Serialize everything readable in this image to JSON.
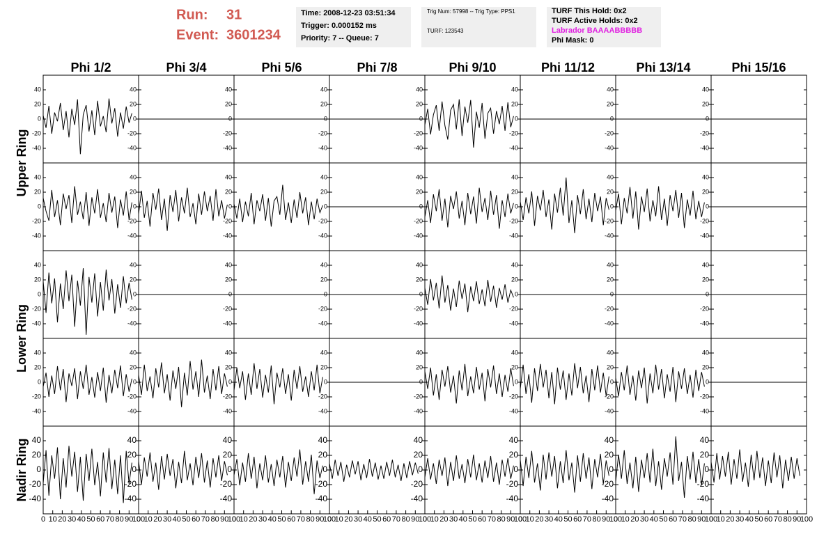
{
  "header": {
    "run_label": "Run:",
    "run": "31",
    "event_label": "Event:",
    "event": "3601234",
    "time_box": [
      "Time: 2008-12-23 03:51:34",
      "Trigger: 0.000152 ms",
      "Priority: 7 -- Queue: 7"
    ],
    "trig_box": [
      "Trig Num: 57998 -- Trig Type: PPS1",
      "TURF: 123543"
    ],
    "turf_box": [
      "TURF This Hold: 0x2",
      "TURF Active Holds: 0x2",
      "Labrador BAAAABBBBB",
      "Phi Mask: 0"
    ]
  },
  "columns": [
    "Phi 1/2",
    "Phi 3/4",
    "Phi 5/6",
    "Phi 7/8",
    "Phi 9/10",
    "Phi 11/12",
    "Phi 13/14",
    "Phi 15/16"
  ],
  "ring_labels": [
    "Upper Ring",
    "Lower Ring",
    "Nadir Ring"
  ],
  "axes": {
    "xlim": [
      0,
      100
    ],
    "ylim": [
      -60,
      60
    ],
    "xticks": [
      0,
      10,
      20,
      30,
      40,
      50,
      60,
      70,
      80,
      90,
      100
    ],
    "yticks": [
      -40,
      -20,
      0,
      20,
      40
    ],
    "x": [
      0,
      3,
      6,
      9,
      12,
      15,
      18,
      21,
      24,
      27,
      30,
      33,
      36,
      39,
      42,
      45,
      48,
      51,
      54,
      57,
      60,
      63,
      66,
      69,
      72,
      75,
      78,
      81,
      84,
      87,
      90,
      93
    ]
  },
  "panels": [
    [
      {
        "values": [
          5,
          -12,
          18,
          -20,
          9,
          -3,
          22,
          -15,
          11,
          -25,
          14,
          -8,
          27,
          -48,
          6,
          19,
          -17,
          12,
          -22,
          25,
          -10,
          4,
          -18,
          28,
          -6,
          15,
          -24,
          9,
          -13,
          17,
          -5,
          8
        ]
      },
      {
        "x": [
          0,
          100
        ],
        "values": [
          0,
          0
        ]
      },
      {
        "x": [
          0,
          100
        ],
        "values": [
          0,
          0
        ]
      },
      {
        "x": [
          0,
          100
        ],
        "values": [
          0,
          0
        ]
      },
      {
        "values": [
          -8,
          14,
          -21,
          6,
          19,
          -16,
          24,
          -9,
          -28,
          12,
          20,
          -14,
          27,
          -23,
          17,
          -5,
          26,
          -39,
          10,
          -12,
          22,
          -27,
          8,
          15,
          -20,
          11,
          -7,
          18,
          -16,
          23,
          -11,
          4
        ]
      },
      {
        "x": [
          0,
          100
        ],
        "values": [
          0,
          0
        ]
      },
      {
        "x": [
          0,
          100
        ],
        "values": [
          0,
          0
        ]
      },
      {
        "x": [
          0,
          100
        ],
        "values": [
          0,
          0
        ]
      }
    ],
    [
      {
        "values": [
          12,
          -6,
          -19,
          23,
          -14,
          9,
          -25,
          18,
          -3,
          16,
          -22,
          28,
          -11,
          7,
          -17,
          20,
          -26,
          13,
          -9,
          24,
          -15,
          5,
          -21,
          19,
          -8,
          14,
          -29,
          10,
          -12,
          21,
          -18,
          6
        ]
      },
      {
        "values": [
          -10,
          22,
          -15,
          8,
          -27,
          19,
          -4,
          25,
          -18,
          11,
          -33,
          16,
          -7,
          23,
          -20,
          13,
          -9,
          26,
          -14,
          5,
          -24,
          18,
          -11,
          21,
          -6,
          15,
          -19,
          24,
          -13,
          9,
          -16,
          3
        ]
      },
      {
        "values": [
          4,
          -16,
          11,
          -21,
          7,
          -13,
          19,
          -24,
          9,
          -6,
          17,
          -19,
          12,
          -27,
          8,
          14,
          -11,
          30,
          -18,
          6,
          -22,
          10,
          -15,
          20,
          -9,
          13,
          -25,
          7,
          -17,
          11,
          -8,
          2
        ]
      },
      {
        "x": [
          0,
          100
        ],
        "values": [
          0,
          0
        ]
      },
      {
        "values": [
          -14,
          9,
          -22,
          17,
          -6,
          24,
          -19,
          11,
          -28,
          15,
          -3,
          21,
          -16,
          8,
          -25,
          19,
          -10,
          14,
          -23,
          26,
          -7,
          12,
          -18,
          22,
          -11,
          16,
          -30,
          9,
          -14,
          18,
          -9,
          5
        ]
      },
      {
        "values": [
          7,
          -18,
          13,
          -9,
          21,
          -26,
          15,
          -5,
          23,
          -14,
          10,
          -31,
          18,
          -8,
          26,
          -12,
          40,
          -22,
          9,
          -36,
          16,
          -10,
          24,
          -17,
          11,
          -21,
          19,
          -6,
          14,
          -25,
          12,
          -4
        ]
      },
      {
        "values": [
          -5,
          18,
          -24,
          12,
          -9,
          27,
          -16,
          21,
          -31,
          14,
          -7,
          25,
          -20,
          9,
          -13,
          28,
          -18,
          11,
          -26,
          16,
          -6,
          23,
          -15,
          19,
          -29,
          10,
          -12,
          22,
          -17,
          8,
          -14,
          6
        ]
      },
      {
        "x": [
          0,
          100
        ],
        "values": [
          0,
          0
        ]
      }
    ],
    [
      {
        "values": [
          18,
          -25,
          30,
          -12,
          22,
          -38,
          15,
          -20,
          33,
          -9,
          27,
          -44,
          19,
          -15,
          36,
          -55,
          24,
          -11,
          29,
          -30,
          17,
          -22,
          34,
          -8,
          21,
          -26,
          14,
          -18,
          25,
          -12,
          16,
          -7
        ]
      },
      {
        "x": [
          0,
          100
        ],
        "values": [
          0,
          0
        ]
      },
      {
        "x": [
          0,
          100
        ],
        "values": [
          0,
          0
        ]
      },
      {
        "x": [
          0,
          100
        ],
        "values": [
          0,
          0
        ]
      },
      {
        "values": [
          9,
          -14,
          21,
          -8,
          16,
          -19,
          26,
          -11,
          13,
          -22,
          8,
          -17,
          19,
          -6,
          15,
          -24,
          11,
          -9,
          18,
          -13,
          7,
          -16,
          20,
          -10,
          12,
          -18,
          9,
          -7,
          14,
          -11,
          6,
          -4
        ]
      },
      {
        "x": [
          0,
          100
        ],
        "values": [
          0,
          0
        ]
      },
      {
        "x": [
          0,
          100
        ],
        "values": [
          0,
          0
        ]
      },
      {
        "x": [
          0,
          100
        ],
        "values": [
          0,
          0
        ]
      }
    ],
    [
      {
        "values": [
          -6,
          13,
          -20,
          9,
          -16,
          22,
          -11,
          18,
          -27,
          12,
          -5,
          19,
          -23,
          15,
          -9,
          24,
          -17,
          7,
          -21,
          14,
          -12,
          20,
          -28,
          10,
          -15,
          17,
          -8,
          23,
          -19,
          11,
          -13,
          5
        ]
      },
      {
        "values": [
          10,
          -17,
          24,
          -12,
          8,
          -22,
          19,
          -7,
          27,
          -15,
          11,
          -25,
          16,
          -9,
          21,
          -34,
          13,
          -18,
          29,
          -10,
          15,
          -20,
          31,
          -14,
          9,
          -23,
          18,
          -11,
          22,
          -16,
          12,
          -6
        ]
      },
      {
        "values": [
          -11,
          20,
          -8,
          15,
          -24,
          12,
          -17,
          26,
          -9,
          18,
          -21,
          10,
          -14,
          23,
          -30,
          13,
          -7,
          19,
          -16,
          11,
          -25,
          17,
          -9,
          22,
          -13,
          8,
          -20,
          15,
          -11,
          24,
          -15,
          7
        ]
      },
      {
        "x": [
          0,
          100
        ],
        "values": [
          0,
          0
        ]
      },
      {
        "values": [
          15,
          -9,
          20,
          -18,
          11,
          -24,
          17,
          -6,
          22,
          -14,
          9,
          -29,
          16,
          -11,
          25,
          -19,
          8,
          -15,
          21,
          -10,
          13,
          -26,
          18,
          -7,
          23,
          -16,
          12,
          -20,
          10,
          -13,
          19,
          -5
        ]
      },
      {
        "values": [
          -9,
          24,
          -16,
          11,
          -28,
          19,
          -12,
          25,
          -7,
          17,
          -22,
          14,
          -30,
          20,
          -10,
          16,
          -24,
          12,
          -18,
          26,
          -8,
          21,
          -15,
          9,
          -27,
          18,
          -11,
          23,
          -14,
          13,
          -19,
          8
        ]
      },
      {
        "values": [
          6,
          -19,
          14,
          -11,
          23,
          -17,
          9,
          -25,
          16,
          -8,
          20,
          -29,
          12,
          -15,
          24,
          -10,
          18,
          -22,
          11,
          -13,
          21,
          -27,
          15,
          -9,
          19,
          -16,
          10,
          -21,
          17,
          -12,
          14,
          -6
        ]
      },
      {
        "x": [
          0,
          100
        ],
        "values": [
          0,
          0
        ]
      }
    ],
    [
      {
        "values": [
          -18,
          27,
          -35,
          20,
          -12,
          31,
          -40,
          16,
          -24,
          33,
          -9,
          25,
          -30,
          18,
          -42,
          22,
          -15,
          29,
          -21,
          11,
          -36,
          24,
          -17,
          30,
          -26,
          14,
          -33,
          20,
          -45,
          26,
          -19,
          10
        ]
      },
      {
        "values": [
          12,
          -20,
          17,
          -9,
          24,
          -16,
          10,
          -27,
          19,
          -13,
          22,
          -8,
          15,
          -25,
          11,
          -18,
          26,
          -14,
          9,
          -21,
          18,
          -11,
          23,
          -17,
          13,
          -24,
          16,
          -10,
          20,
          -15,
          12,
          -7
        ]
      },
      {
        "values": [
          -7,
          15,
          -21,
          10,
          -16,
          23,
          -12,
          18,
          -25,
          9,
          -14,
          20,
          -17,
          8,
          -22,
          14,
          -10,
          19,
          -24,
          11,
          -15,
          17,
          -9,
          28,
          -20,
          12,
          -16,
          21,
          -33,
          13,
          -11,
          6
        ]
      },
      {
        "values": [
          9,
          -12,
          14,
          -8,
          11,
          -16,
          7,
          -10,
          13,
          -6,
          12,
          -14,
          8,
          -11,
          15,
          -9,
          10,
          -13,
          6,
          -12,
          11,
          -8,
          14,
          -10,
          7,
          -15,
          9,
          -11,
          12,
          -7,
          10,
          -5
        ]
      },
      {
        "values": [
          -10,
          16,
          -13,
          9,
          -19,
          14,
          -8,
          17,
          -22,
          11,
          -15,
          20,
          -12,
          8,
          -18,
          15,
          -10,
          21,
          -14,
          9,
          -17,
          13,
          -11,
          19,
          -16,
          10,
          -20,
          14,
          -9,
          16,
          -12,
          6
        ]
      },
      {
        "values": [
          14,
          -22,
          18,
          -11,
          26,
          -17,
          9,
          -28,
          21,
          -13,
          24,
          -9,
          19,
          -25,
          12,
          -18,
          27,
          -14,
          10,
          -31,
          20,
          -16,
          23,
          -12,
          17,
          -26,
          15,
          -10,
          22,
          -19,
          13,
          -8
        ]
      },
      {
        "values": [
          -16,
          21,
          -12,
          27,
          -19,
          10,
          -25,
          18,
          -30,
          14,
          -11,
          23,
          -17,
          29,
          -22,
          12,
          -27,
          16,
          -9,
          24,
          -20,
          46,
          -15,
          11,
          -38,
          19,
          -13,
          25,
          -18,
          15,
          -21,
          9
        ]
      },
      {
        "values": [
          11,
          -17,
          23,
          -13,
          19,
          -9,
          25,
          -20,
          15,
          -12,
          28,
          -16,
          10,
          -23,
          21,
          -14,
          26,
          -11,
          17,
          -22,
          13,
          -18,
          24,
          -10,
          20,
          -25,
          14,
          -15,
          18,
          -12,
          16,
          -8
        ]
      }
    ]
  ]
}
